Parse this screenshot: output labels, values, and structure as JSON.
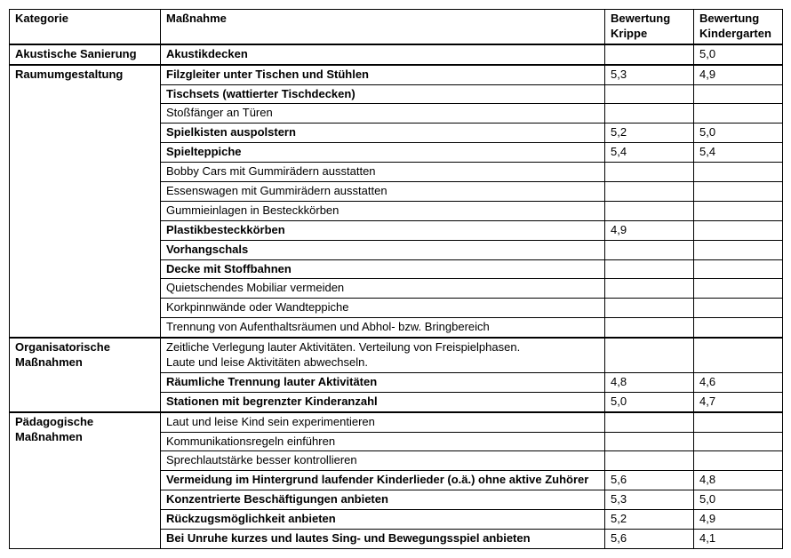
{
  "headers": [
    "Kategorie",
    "Maßnahme",
    "Bewertung Krippe",
    "Bewertung Kindergarten"
  ],
  "groups": [
    {
      "category": "Akustische Sanierung",
      "rows": [
        {
          "m": "Akustikdecken",
          "b": true,
          "k": "",
          "g": "5,0"
        }
      ]
    },
    {
      "category": "Raumumgestaltung",
      "rows": [
        {
          "m": "Filzgleiter unter Tischen und Stühlen",
          "b": true,
          "k": "5,3",
          "g": "4,9"
        },
        {
          "m": "Tischsets (wattierter Tischdecken)",
          "b": true,
          "k": "",
          "g": ""
        },
        {
          "m": "Stoßfänger an Türen",
          "b": false,
          "k": "",
          "g": ""
        },
        {
          "m": "Spielkisten auspolstern",
          "b": true,
          "k": "5,2",
          "g": "5,0"
        },
        {
          "m": "Spielteppiche",
          "b": true,
          "k": "5,4",
          "g": "5,4"
        },
        {
          "m": "Bobby Cars mit Gummirädern ausstatten",
          "b": false,
          "k": "",
          "g": ""
        },
        {
          "m": "Essenswagen mit Gummirädern ausstatten",
          "b": false,
          "k": "",
          "g": ""
        },
        {
          "m": "Gummieinlagen in Besteckkörben",
          "b": false,
          "k": "",
          "g": ""
        },
        {
          "m": "Plastikbesteckkörben",
          "b": true,
          "k": "4,9",
          "g": ""
        },
        {
          "m": "Vorhangschals",
          "b": true,
          "k": "",
          "g": ""
        },
        {
          "m": "Decke mit Stoffbahnen",
          "b": true,
          "k": "",
          "g": ""
        },
        {
          "m": "Quietschendes Mobiliar vermeiden",
          "b": false,
          "k": "",
          "g": ""
        },
        {
          "m": "Korkpinnwände oder Wandteppiche",
          "b": false,
          "k": "",
          "g": ""
        },
        {
          "m": "Trennung von Aufenthaltsräumen und Abhol- bzw. Bringbereich",
          "b": false,
          "k": "",
          "g": ""
        }
      ]
    },
    {
      "category": "Organisatorische Maßnahmen",
      "rows": [
        {
          "m": "Zeitliche Verlegung lauter Aktivitäten.  Verteilung von Freispielphasen.\nLaute und leise Aktivitäten abwechseln.",
          "b": false,
          "k": "",
          "g": ""
        },
        {
          "m": "Räumliche Trennung lauter Aktivitäten",
          "b": true,
          "k": "4,8",
          "g": "4,6"
        },
        {
          "m": "Stationen mit begrenzter Kinderanzahl",
          "b": true,
          "k": "5,0",
          "g": "4,7"
        }
      ]
    },
    {
      "category": "Pädagogische Maßnahmen",
      "rows": [
        {
          "m": "Laut und leise Kind sein experimentieren",
          "b": false,
          "k": "",
          "g": ""
        },
        {
          "m": "Kommunikationsregeln einführen",
          "b": false,
          "k": "",
          "g": ""
        },
        {
          "m": "Sprechlautstärke besser kontrollieren",
          "b": false,
          "k": "",
          "g": ""
        },
        {
          "m": "Vermeidung im Hintergrund laufender Kinderlieder (o.ä.) ohne aktive Zuhörer",
          "b": true,
          "k": "5,6",
          "g": "4,8"
        },
        {
          "m": "Konzentrierte Beschäftigungen anbieten",
          "b": true,
          "k": "5,3",
          "g": "5,0"
        },
        {
          "m": "Rückzugsmöglichkeit anbieten",
          "b": true,
          "k": "5,2",
          "g": "4,9"
        },
        {
          "m": "Bei Unruhe kurzes und lautes Sing- und Bewegungsspiel anbieten",
          "b": true,
          "k": "5,6",
          "g": "4,1"
        }
      ]
    }
  ]
}
